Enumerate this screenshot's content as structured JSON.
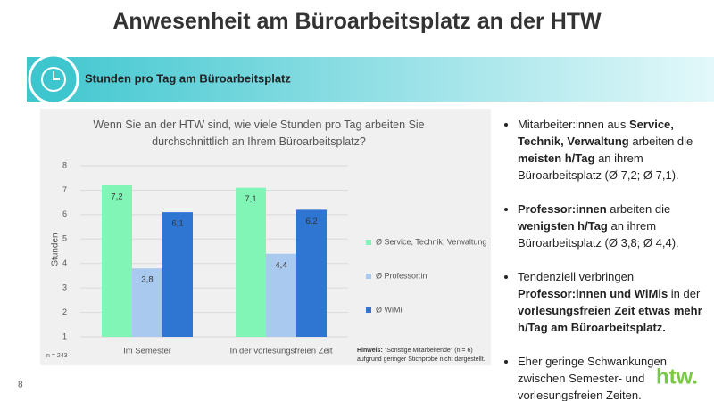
{
  "title": "Anwesenheit am Büroarbeitsplatz an der HTW",
  "banner": "Stunden pro Tag am Büroarbeitsplatz",
  "chart_data": {
    "type": "bar",
    "title": "Wenn Sie an der HTW sind, wie viele Stunden pro Tag arbeiten Sie durchschnittlich an Ihrem Büroarbeitsplatz?",
    "y_label": "Stunden",
    "categories": [
      "Im Semester",
      "In der vorlesungsfreien Zeit"
    ],
    "series": [
      {
        "name": "Ø Service, Technik, Verwaltung",
        "color": "#80f5b6",
        "values": [
          7.2,
          7.1
        ],
        "value_labels": [
          "7,2",
          "7,1"
        ]
      },
      {
        "name": "Ø Professor:in",
        "color": "#a9c9ee",
        "values": [
          3.8,
          4.4
        ],
        "value_labels": [
          "3,8",
          "4,4"
        ]
      },
      {
        "name": "Ø WiMi",
        "color": "#2f76d2",
        "values": [
          6.1,
          6.2
        ],
        "value_labels": [
          "6,1",
          "6,2"
        ]
      }
    ],
    "ylim": [
      1,
      8
    ],
    "yticks": [
      1,
      2,
      3,
      4,
      5,
      6,
      7,
      8
    ],
    "grid": true,
    "sample_note": "n = 243",
    "note": [
      {
        "text": "Hinweis:",
        "bold": true
      },
      {
        "text": " \"Sonstige Mitarbeitende\" (n = 6) aufgrund geringer Stichprobe nicht dargestellt.",
        "bold": false
      }
    ]
  },
  "bullets": [
    [
      {
        "text": "Mitarbeiter:innen aus ",
        "bold": false
      },
      {
        "text": "Service, Technik, Verwaltung",
        "bold": true
      },
      {
        "text": " arbeiten die ",
        "bold": false
      },
      {
        "text": "meisten h/Tag",
        "bold": true
      },
      {
        "text": " an ihrem Büroarbeitsplatz (Ø 7,2; Ø 7,1).",
        "bold": false
      }
    ],
    [
      {
        "text": "Professor:innen",
        "bold": true
      },
      {
        "text": " arbeiten die ",
        "bold": false
      },
      {
        "text": "wenigsten h/Tag",
        "bold": true
      },
      {
        "text": " an ihrem Büroarbeitsplatz (Ø 3,8; Ø 4,4).",
        "bold": false
      }
    ],
    [
      {
        "text": "Tendenziell verbringen ",
        "bold": false
      },
      {
        "text": "Professor:innen und WiMis",
        "bold": true
      },
      {
        "text": " in der ",
        "bold": false
      },
      {
        "text": "vorlesungsfreien Zeit etwas mehr h/Tag am Büroarbeitsplatz.",
        "bold": true
      }
    ],
    [
      {
        "text": "Eher geringe Schwankungen zwischen Semester- und vorlesungsfreien Zeiten.",
        "bold": false
      }
    ]
  ],
  "page_number": "8",
  "logo": "htw."
}
